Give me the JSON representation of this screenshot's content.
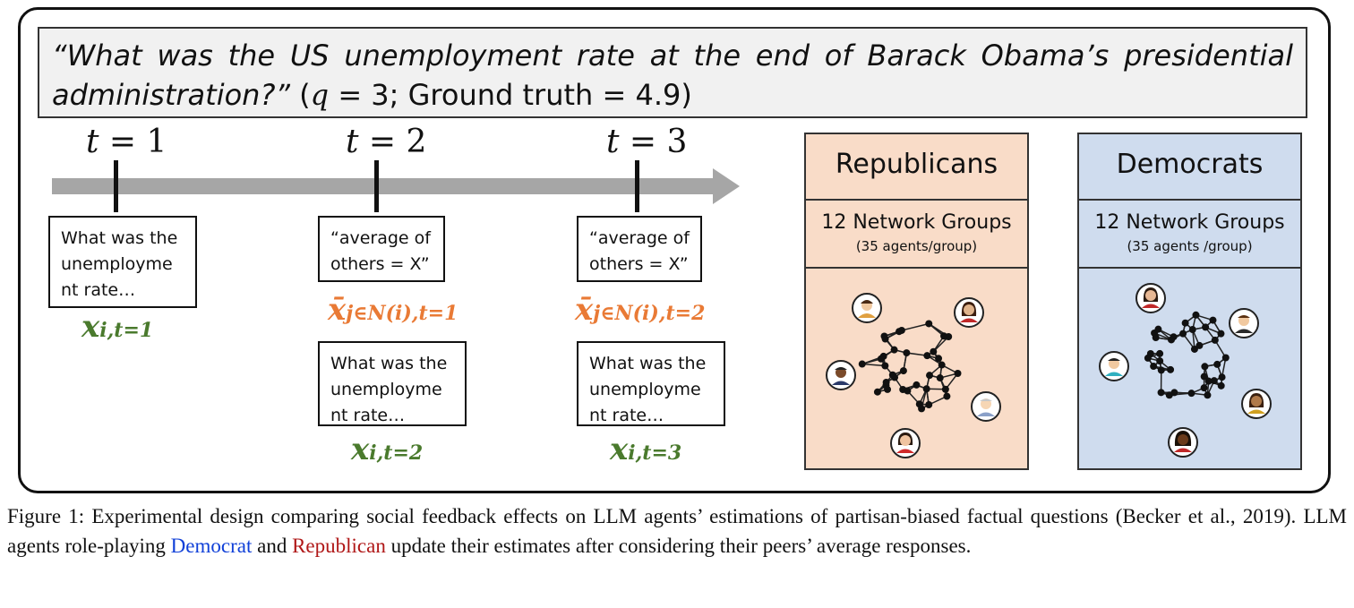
{
  "question": {
    "line1": "“What was the US unemployment rate at the end of Barack Obama’s presidential",
    "line2_italic": "administration?”",
    "line2_open": " (",
    "q_var": "q",
    "line2_mid": " = 3; Ground truth = 4.9)"
  },
  "timeline": {
    "labels": [
      {
        "var": "t",
        "rest": " = 1"
      },
      {
        "var": "t",
        "rest": " = 2"
      },
      {
        "var": "t",
        "rest": " = 3"
      }
    ]
  },
  "boxes": {
    "t1_prompt": [
      "What was the",
      "unemployme",
      "nt rate…"
    ],
    "t2_avg": [
      "“average of",
      "others = X”"
    ],
    "t2_prompt": [
      "What was the",
      "unemployme",
      "nt rate…"
    ],
    "t3_avg": [
      "“average of",
      "others = X”"
    ],
    "t3_prompt": [
      "What was the",
      "unemployme",
      "nt rate…"
    ]
  },
  "math": {
    "x_t1": {
      "main": "x",
      "sub": "i,t=1"
    },
    "xbar_t1": {
      "main": "x̄",
      "sub": "j∈N(i),t=1"
    },
    "x_t2": {
      "main": "x",
      "sub": "i,t=2"
    },
    "xbar_t2": {
      "main": "x̄",
      "sub": "j∈N(i),t=2"
    },
    "x_t3": {
      "main": "x",
      "sub": "i,t=3"
    }
  },
  "panels": {
    "republicans": {
      "title": "Republicans",
      "groups": "12 Network Groups",
      "agents": "(35 agents/group)",
      "color": "#f9dcc8"
    },
    "democrats": {
      "title": "Democrats",
      "groups": "12 Network Groups",
      "agents": "(35 agents /group)",
      "color": "#cfdcee"
    }
  },
  "caption": {
    "part1": "Figure 1: Experimental design comparing social feedback effects on LLM agents’ estimations of partisan-biased factual questions (Becker et al., 2019). LLM agents role-playing ",
    "democrat": "Democrat",
    "and": " and ",
    "republican": "Republican",
    "part2": " update their estimates after considering their peers’ average responses."
  },
  "colors": {
    "green": "#4a7a2d",
    "orange": "#e97a35",
    "democrat_text": "#1040d8",
    "republican_text": "#b01818",
    "arrow": "#a6a6a6"
  }
}
